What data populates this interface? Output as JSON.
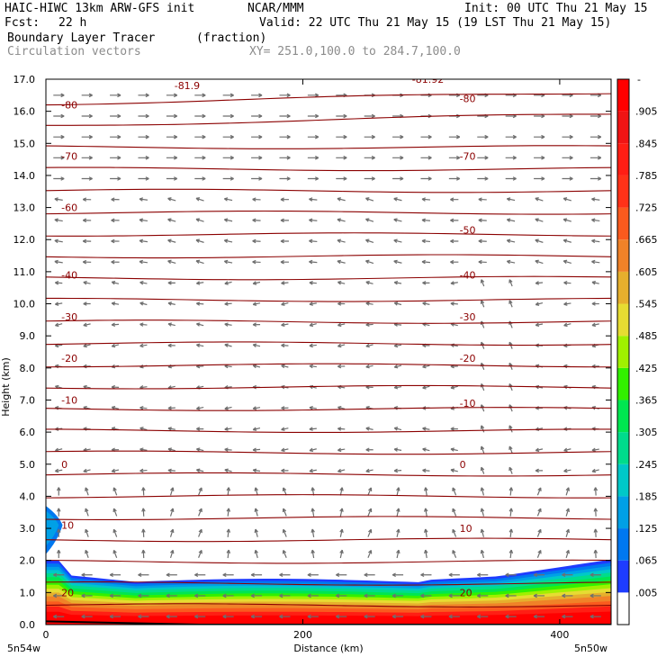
{
  "header": {
    "model": "HAIC-HIWC 13km ARW-GFS init",
    "org": "NCAR/MMM",
    "init": "Init: 00 UTC Thu 21 May 15",
    "fcst_label": "Fcst:",
    "fcst_value": "22 h",
    "valid": "Valid: 22 UTC Thu 21 May 15 (19 LST Thu 21 May 15)",
    "field": "Boundary Layer Tracer",
    "units": "(fraction)",
    "vectors": "Circulation vectors",
    "xy": "XY= 251.0,100.0 to 284.7,100.0"
  },
  "chart_data": {
    "type": "heatmap",
    "ylabel": "Height (km)",
    "xlabel": "Distance (km)",
    "xlim": [
      0,
      440
    ],
    "ylim": [
      0.0,
      17.0
    ],
    "x_ticks": [
      "0",
      "200",
      "400"
    ],
    "y_ticks": [
      "0.0",
      "1.0",
      "2.0",
      "3.0",
      "4.0",
      "5.0",
      "6.0",
      "7.0",
      "8.0",
      "9.0",
      "10.0",
      "11.0",
      "12.0",
      "13.0",
      "14.0",
      "15.0",
      "16.0",
      "17.0"
    ],
    "endpoints": {
      "left": "5n54w",
      "right": "5n50w"
    },
    "colorbar": {
      "labels": [
        ".005",
        ".065",
        ".125",
        ".185",
        ".245",
        ".305",
        ".365",
        ".425",
        ".485",
        ".545",
        ".605",
        ".665",
        ".725",
        ".785",
        ".845",
        ".905"
      ],
      "top_label": "-",
      "colors": [
        "#ffffff",
        "#1e3cff",
        "#0078f0",
        "#00a0e6",
        "#00c8c8",
        "#00dc8c",
        "#00e650",
        "#32f000",
        "#a0f000",
        "#e6dc32",
        "#e6af2d",
        "#f08228",
        "#fa5a1e",
        "#ff3218",
        "#ff1e14",
        "#f01414",
        "#ff0000"
      ]
    },
    "temperature_contours": {
      "labels_left": [
        "-80",
        "-70",
        "-60",
        "-40",
        "-30",
        "-20",
        "-10",
        "0",
        "10",
        "20"
      ],
      "labels_right": [
        "-80",
        "-70",
        "-50",
        "-40",
        "-30",
        "-20",
        "-10",
        "0",
        "10",
        "20"
      ],
      "extra": [
        "-81.9",
        "-81.92"
      ]
    }
  }
}
